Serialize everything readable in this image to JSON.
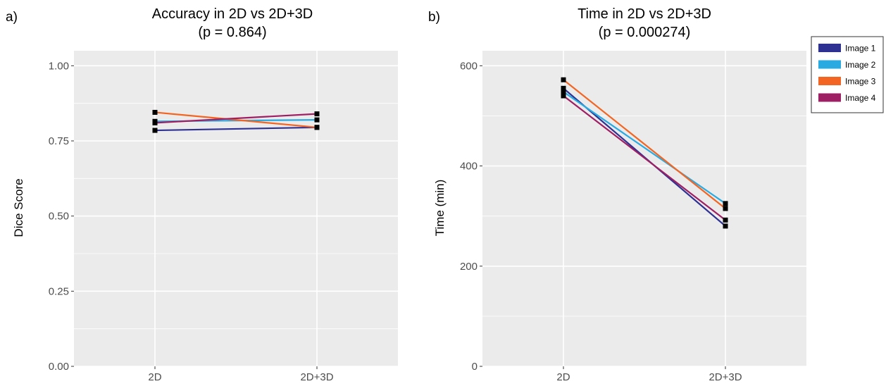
{
  "legend": {
    "entries": [
      {
        "name": "Image 1",
        "color": "#2e3192"
      },
      {
        "name": "Image 2",
        "color": "#29abe2"
      },
      {
        "name": "Image 3",
        "color": "#f26522"
      },
      {
        "name": "Image 4",
        "color": "#9e1f63"
      }
    ],
    "placement": "right"
  },
  "chart_data": [
    {
      "type": "line",
      "panel_label": "a)",
      "title": "Accuracy in 2D vs 2D+3D",
      "subtitle": "(p = 0.864)",
      "xlabel": "",
      "ylabel": "Dice Score",
      "categories": [
        "2D",
        "2D+3D"
      ],
      "ylim": [
        0,
        1.05
      ],
      "yticks": [
        0,
        0.25,
        0.5,
        0.75,
        1.0
      ],
      "ytick_labels": [
        "0.00",
        "0.25",
        "0.50",
        "0.75",
        "1.00"
      ],
      "grid": true,
      "series": [
        {
          "name": "Image 1",
          "color": "#2e3192",
          "values": [
            0.785,
            0.795
          ]
        },
        {
          "name": "Image 2",
          "color": "#29abe2",
          "values": [
            0.815,
            0.82
          ]
        },
        {
          "name": "Image 3",
          "color": "#f26522",
          "values": [
            0.845,
            0.795
          ]
        },
        {
          "name": "Image 4",
          "color": "#9e1f63",
          "values": [
            0.81,
            0.84
          ]
        }
      ]
    },
    {
      "type": "line",
      "panel_label": "b)",
      "title": "Time in 2D vs 2D+3D",
      "subtitle": "(p = 0.000274)",
      "xlabel": "",
      "ylabel": "Time (min)",
      "categories": [
        "2D",
        "2D+3D"
      ],
      "ylim": [
        0,
        630
      ],
      "yticks": [
        0,
        200,
        400,
        600
      ],
      "ytick_labels": [
        "0",
        "200",
        "400",
        "600"
      ],
      "grid": true,
      "series": [
        {
          "name": "Image 1",
          "color": "#2e3192",
          "values": [
            555,
            280
          ]
        },
        {
          "name": "Image 2",
          "color": "#29abe2",
          "values": [
            548,
            325
          ]
        },
        {
          "name": "Image 3",
          "color": "#f26522",
          "values": [
            572,
            315
          ]
        },
        {
          "name": "Image 4",
          "color": "#9e1f63",
          "values": [
            540,
            292
          ]
        }
      ]
    }
  ]
}
